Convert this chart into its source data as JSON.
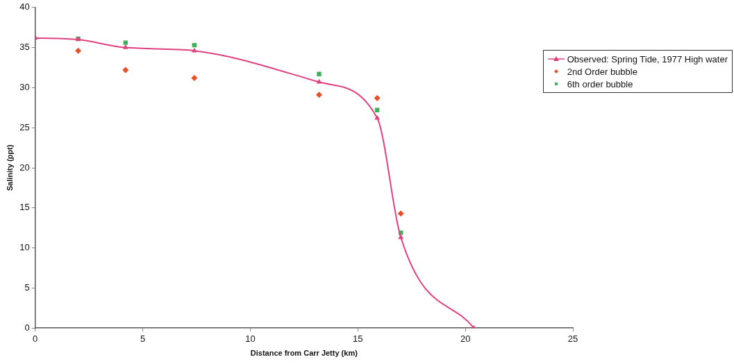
{
  "chart_data": {
    "type": "scatter",
    "xlabel": "Distance from Carr Jetty (km)",
    "ylabel": "Salinity (ppt)",
    "xlim": [
      0,
      25
    ],
    "xticks": [
      0,
      5,
      10,
      15,
      20,
      25
    ],
    "ylim": [
      0,
      40
    ],
    "yticks": [
      0,
      5,
      10,
      15,
      20,
      25,
      30,
      35,
      40
    ],
    "grid": false,
    "legend": "top right",
    "series": [
      {
        "name": "Observed: Spring Tide, 1977 High water",
        "type": "line",
        "marker": "triangle",
        "color": "#e0407f",
        "x": [
          0,
          2,
          4.2,
          7.4,
          13.2,
          15.9,
          17.0,
          20.4
        ],
        "values": [
          36.2,
          36.0,
          35.0,
          34.6,
          30.7,
          26.2,
          11.3,
          0
        ]
      },
      {
        "name": "2nd Order bubble",
        "type": "scatter",
        "marker": "diamond",
        "color": "#e8502a",
        "x": [
          2,
          4.2,
          7.4,
          13.2,
          15.9,
          17.0
        ],
        "values": [
          34.6,
          32.2,
          31.2,
          29.1,
          28.7,
          14.3
        ]
      },
      {
        "name": "6th order bubble",
        "type": "scatter",
        "marker": "square",
        "color": "#3cb35a",
        "x": [
          2,
          4.2,
          7.4,
          13.2,
          15.9,
          17.0
        ],
        "values": [
          36.1,
          35.6,
          35.3,
          31.7,
          27.2,
          11.9
        ]
      }
    ]
  }
}
